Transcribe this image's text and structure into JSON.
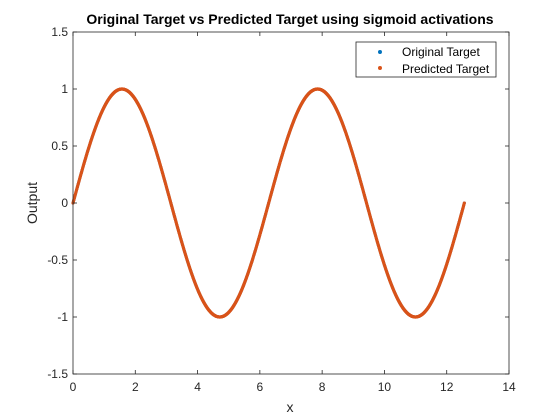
{
  "chart_data": {
    "type": "line",
    "title": "Original Target vs Predicted Target using sigmoid activations",
    "xlabel": "x",
    "ylabel": "Output",
    "xlim": [
      0,
      14
    ],
    "ylim": [
      -1.5,
      1.5
    ],
    "xticks": [
      0,
      2,
      4,
      6,
      8,
      10,
      12,
      14
    ],
    "yticks": [
      -1.5,
      -1,
      -0.5,
      0,
      0.5,
      1,
      1.5
    ],
    "xtick_labels": [
      "0",
      "2",
      "4",
      "6",
      "8",
      "10",
      "12",
      "14"
    ],
    "ytick_labels": [
      "-1.5",
      "-1",
      "-0.5",
      "0",
      "0.5",
      "1",
      "1.5"
    ],
    "grid": false,
    "legend_position": "top-right",
    "x_range": [
      0,
      12.566
    ],
    "function": "sin(x)",
    "series": [
      {
        "name": "Original Target",
        "color": "#0072BD",
        "marker": "dot"
      },
      {
        "name": "Predicted Target",
        "color": "#D95319",
        "marker": "dot"
      }
    ]
  }
}
